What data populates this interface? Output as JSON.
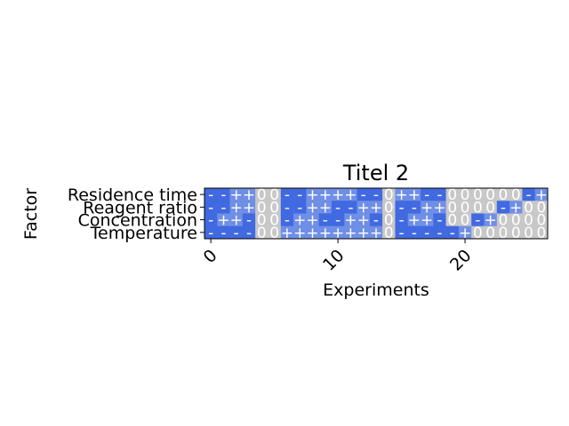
{
  "chart_data": {
    "type": "heatmap",
    "title": "Titel 2",
    "xlabel": "Experiments",
    "ylabel": "Factor",
    "rows": [
      "Residence time",
      "Reagent ratio",
      "Concentration",
      "Temperature"
    ],
    "x_ticks": [
      0,
      10,
      20
    ],
    "x_tick_labels": [
      "0",
      "10",
      "20"
    ],
    "columns": 27,
    "values": [
      [
        "-",
        "-",
        "+",
        "+",
        "0",
        "0",
        "-",
        "-",
        "+",
        "+",
        "+",
        "+",
        "-",
        "-",
        "0",
        "+",
        "+",
        "-",
        "-",
        "0",
        "0",
        "0",
        "0",
        "0",
        "0",
        "-",
        "+"
      ],
      [
        "-",
        "-",
        "+",
        "+",
        "0",
        "0",
        "-",
        "-",
        "+",
        "+",
        "-",
        "-",
        "+",
        "+",
        "0",
        "-",
        "-",
        "+",
        "+",
        "0",
        "0",
        "0",
        "0",
        "-",
        "+",
        "0",
        "0"
      ],
      [
        "-",
        "+",
        "+",
        "-",
        "0",
        "0",
        "-",
        "+",
        "+",
        "-",
        "-",
        "+",
        "+",
        "-",
        "0",
        "-",
        "+",
        "+",
        "-",
        "0",
        "0",
        "-",
        "+",
        "0",
        "0",
        "0",
        "0"
      ],
      [
        "-",
        "-",
        "-",
        "-",
        "0",
        "0",
        "+",
        "+",
        "+",
        "+",
        "+",
        "+",
        "+",
        "+",
        "0",
        "-",
        "-",
        "-",
        "-",
        "-",
        "+",
        "0",
        "0",
        "0",
        "0",
        "0",
        "0"
      ]
    ],
    "colors": {
      "-": "#4169e1",
      "+": "#6f8fe6",
      "0": "#c8c8c8"
    },
    "cell_text_color": "#ffffff",
    "grid": false
  }
}
